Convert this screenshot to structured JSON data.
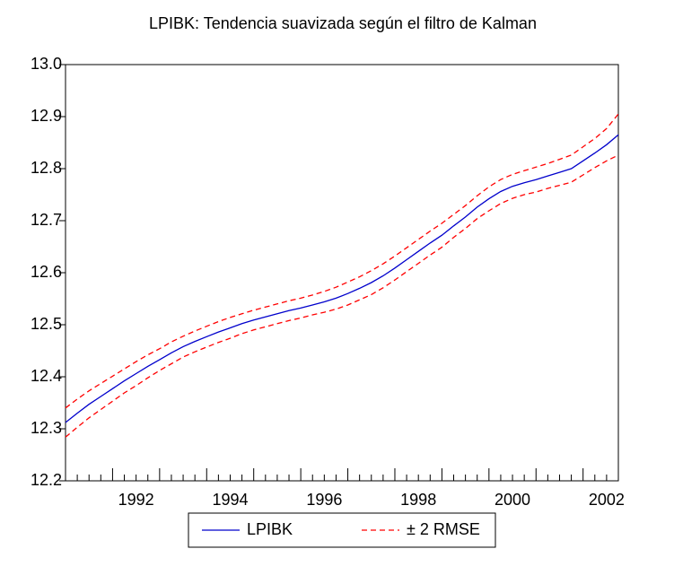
{
  "chart_data": {
    "type": "line",
    "title": "LPIBK:  Tendencia suavizada según el filtro de Kalman",
    "categories": [
      null,
      null,
      null,
      null,
      "1992",
      null,
      null,
      null,
      null,
      null,
      null,
      null,
      "1994",
      null,
      null,
      null,
      null,
      null,
      null,
      null,
      "1996",
      null,
      null,
      null,
      null,
      null,
      null,
      null,
      "1998",
      null,
      null,
      null,
      null,
      null,
      null,
      null,
      "2000",
      null,
      null,
      null,
      null,
      null,
      null,
      null,
      "2002",
      null,
      null,
      null
    ],
    "series": [
      {
        "name": "LPIBK",
        "color": "#0000cc",
        "values": [
          12.312,
          12.33,
          12.347,
          12.362,
          12.377,
          12.392,
          12.406,
          12.42,
          12.433,
          12.446,
          12.458,
          12.468,
          12.477,
          12.486,
          12.494,
          12.502,
          12.509,
          12.515,
          12.521,
          12.527,
          12.532,
          12.538,
          12.544,
          12.551,
          12.56,
          12.57,
          12.581,
          12.594,
          12.609,
          12.625,
          12.641,
          12.657,
          12.672,
          12.69,
          12.707,
          12.726,
          12.742,
          12.756,
          12.766,
          12.773,
          12.779,
          12.786,
          12.793,
          12.8,
          12.815,
          12.83,
          12.846,
          12.865
        ]
      },
      {
        "name": "± 2 RMSE",
        "color": "#ff0000",
        "dashed": true,
        "upper": [
          12.34,
          12.357,
          12.373,
          12.387,
          12.401,
          12.415,
          12.429,
          12.442,
          12.454,
          12.467,
          12.478,
          12.488,
          12.497,
          12.506,
          12.514,
          12.521,
          12.528,
          12.534,
          12.54,
          12.546,
          12.551,
          12.557,
          12.564,
          12.572,
          12.582,
          12.592,
          12.604,
          12.617,
          12.632,
          12.648,
          12.664,
          12.68,
          12.695,
          12.712,
          12.729,
          12.748,
          12.765,
          12.779,
          12.789,
          12.796,
          12.803,
          12.81,
          12.818,
          12.826,
          12.842,
          12.858,
          12.877,
          12.905
        ],
        "lower": [
          12.284,
          12.303,
          12.321,
          12.337,
          12.353,
          12.369,
          12.383,
          12.398,
          12.412,
          12.425,
          12.438,
          12.448,
          12.457,
          12.466,
          12.474,
          12.483,
          12.49,
          12.496,
          12.502,
          12.508,
          12.513,
          12.519,
          12.524,
          12.53,
          12.538,
          12.548,
          12.558,
          12.571,
          12.586,
          12.602,
          12.618,
          12.634,
          12.649,
          12.668,
          12.685,
          12.704,
          12.719,
          12.733,
          12.743,
          12.75,
          12.755,
          12.762,
          12.768,
          12.774,
          12.788,
          12.802,
          12.815,
          12.826
        ]
      }
    ],
    "ylim": [
      12.2,
      13.0
    ],
    "yticks": [
      12.2,
      12.3,
      12.4,
      12.5,
      12.6,
      12.7,
      12.8,
      12.9,
      {
        "value": 13.0,
        "label": "13.0"
      }
    ],
    "grid": false
  }
}
